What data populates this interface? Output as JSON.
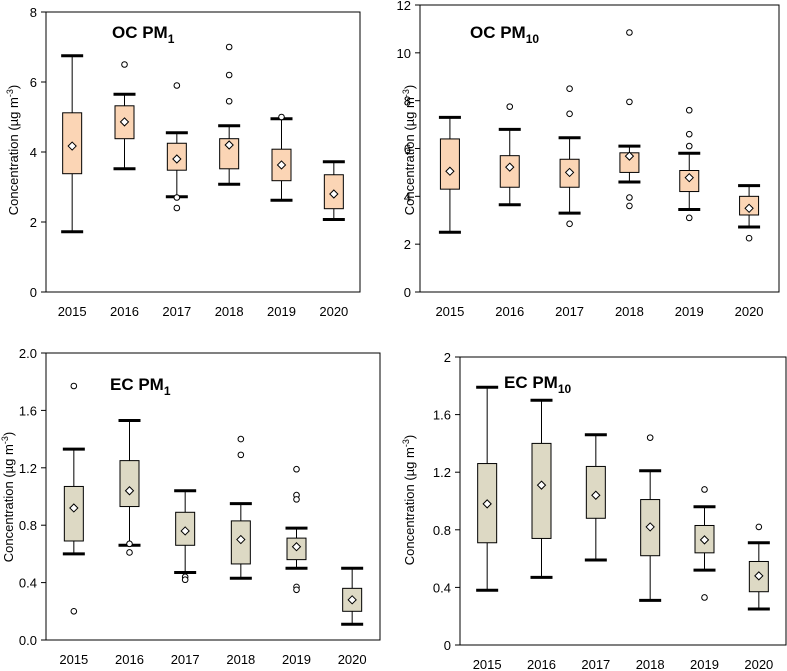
{
  "chart_data": [
    {
      "type": "box",
      "id": "oc-pm1",
      "title": "OC PM",
      "title_sub": "1",
      "ylabel": "Concentration (µg m",
      "ylabel_sup": "-3",
      "ylabel_end": ")",
      "ylim": [
        0,
        8
      ],
      "yticks": [
        "0",
        "2",
        "4",
        "6",
        "8"
      ],
      "ytick_values": [
        0,
        2,
        4,
        6,
        8
      ],
      "categories": [
        "2015",
        "2016",
        "2017",
        "2018",
        "2019",
        "2020"
      ],
      "box_color": "#fbd5b5",
      "boxes": [
        {
          "whislo": 1.72,
          "q1": 3.38,
          "q3": 5.12,
          "whishi": 6.75,
          "mean": 4.17,
          "fliers": []
        },
        {
          "whislo": 3.52,
          "q1": 4.38,
          "q3": 5.32,
          "whishi": 5.65,
          "mean": 4.86,
          "fliers": [
            6.5
          ]
        },
        {
          "whislo": 2.72,
          "q1": 3.48,
          "q3": 4.25,
          "whishi": 4.55,
          "mean": 3.8,
          "fliers": [
            5.9,
            2.7,
            2.4
          ]
        },
        {
          "whislo": 3.08,
          "q1": 3.52,
          "q3": 4.38,
          "whishi": 4.75,
          "mean": 4.2,
          "fliers": [
            7.0,
            6.2,
            5.45
          ]
        },
        {
          "whislo": 2.62,
          "q1": 3.18,
          "q3": 4.08,
          "whishi": 4.95,
          "mean": 3.63,
          "fliers": [
            5.0
          ]
        },
        {
          "whislo": 2.07,
          "q1": 2.38,
          "q3": 3.35,
          "whishi": 3.72,
          "mean": 2.8,
          "fliers": []
        }
      ]
    },
    {
      "type": "box",
      "id": "oc-pm10",
      "title": "OC PM",
      "title_sub": "10",
      "ylabel": "Concentration (µg m",
      "ylabel_sup": "-3",
      "ylabel_end": ")",
      "ylim": [
        0,
        12
      ],
      "yticks": [
        "0",
        "2",
        "4",
        "6",
        "8",
        "10",
        "12"
      ],
      "ytick_values": [
        0,
        2,
        4,
        6,
        8,
        10,
        12
      ],
      "categories": [
        "2015",
        "2016",
        "2017",
        "2018",
        "2019",
        "2020"
      ],
      "box_color": "#fbd5b5",
      "boxes": [
        {
          "whislo": 2.5,
          "q1": 4.3,
          "q3": 6.4,
          "whishi": 7.3,
          "mean": 5.05,
          "fliers": []
        },
        {
          "whislo": 3.65,
          "q1": 4.38,
          "q3": 5.7,
          "whishi": 6.8,
          "mean": 5.22,
          "fliers": [
            7.75
          ]
        },
        {
          "whislo": 3.3,
          "q1": 4.38,
          "q3": 5.55,
          "whishi": 6.45,
          "mean": 5.0,
          "fliers": [
            8.5,
            7.45,
            2.85
          ]
        },
        {
          "whislo": 4.6,
          "q1": 5.0,
          "q3": 5.82,
          "whishi": 6.1,
          "mean": 5.68,
          "fliers": [
            10.85,
            7.95,
            3.95,
            3.6
          ]
        },
        {
          "whislo": 3.45,
          "q1": 4.2,
          "q3": 5.08,
          "whishi": 5.8,
          "mean": 4.78,
          "fliers": [
            7.6,
            6.6,
            6.1,
            3.1
          ]
        },
        {
          "whislo": 2.72,
          "q1": 3.22,
          "q3": 4.0,
          "whishi": 4.45,
          "mean": 3.5,
          "fliers": [
            2.25
          ]
        }
      ]
    },
    {
      "type": "box",
      "id": "ec-pm1",
      "title": "EC PM",
      "title_sub": "1",
      "ylabel": "Concentration (µg m",
      "ylabel_sup": "-3",
      "ylabel_end": ")",
      "ylim": [
        0,
        2
      ],
      "yticks": [
        "0.0",
        "0.4",
        "0.8",
        "1.2",
        "1.6",
        "2.0"
      ],
      "ytick_values": [
        0,
        0.4,
        0.8,
        1.2,
        1.6,
        2.0
      ],
      "categories": [
        "2015",
        "2016",
        "2017",
        "2018",
        "2019",
        "2020"
      ],
      "box_color": "#ddd9c4",
      "boxes": [
        {
          "whislo": 0.6,
          "q1": 0.69,
          "q3": 1.07,
          "whishi": 1.33,
          "mean": 0.92,
          "fliers": [
            1.77,
            0.2
          ]
        },
        {
          "whislo": 0.66,
          "q1": 0.93,
          "q3": 1.25,
          "whishi": 1.53,
          "mean": 1.04,
          "fliers": [
            0.67,
            0.61
          ]
        },
        {
          "whislo": 0.47,
          "q1": 0.66,
          "q3": 0.89,
          "whishi": 1.04,
          "mean": 0.76,
          "fliers": [
            0.44,
            0.42
          ]
        },
        {
          "whislo": 0.43,
          "q1": 0.53,
          "q3": 0.83,
          "whishi": 0.95,
          "mean": 0.7,
          "fliers": [
            1.4,
            1.29
          ]
        },
        {
          "whislo": 0.5,
          "q1": 0.56,
          "q3": 0.71,
          "whishi": 0.78,
          "mean": 0.65,
          "fliers": [
            1.19,
            1.01,
            0.98,
            0.37,
            0.35
          ]
        },
        {
          "whislo": 0.11,
          "q1": 0.2,
          "q3": 0.36,
          "whishi": 0.5,
          "mean": 0.28,
          "fliers": []
        }
      ]
    },
    {
      "type": "box",
      "id": "ec-pm10",
      "title": "EC PM",
      "title_sub": "10",
      "ylabel": "Concentration (µg m",
      "ylabel_sup": "-3",
      "ylabel_end": ")",
      "ylim": [
        0,
        2
      ],
      "yticks": [
        "0",
        "0.4",
        "0.8",
        "1.2",
        "1.6",
        "2"
      ],
      "ytick_values": [
        0,
        0.4,
        0.8,
        1.2,
        1.6,
        2.0
      ],
      "categories": [
        "2015",
        "2016",
        "2017",
        "2018",
        "2019",
        "2020"
      ],
      "box_color": "#ddd9c4",
      "boxes": [
        {
          "whislo": 0.38,
          "q1": 0.71,
          "q3": 1.26,
          "whishi": 1.79,
          "mean": 0.98,
          "fliers": []
        },
        {
          "whislo": 0.47,
          "q1": 0.74,
          "q3": 1.4,
          "whishi": 1.7,
          "mean": 1.11,
          "fliers": []
        },
        {
          "whislo": 0.59,
          "q1": 0.88,
          "q3": 1.24,
          "whishi": 1.46,
          "mean": 1.04,
          "fliers": []
        },
        {
          "whislo": 0.31,
          "q1": 0.62,
          "q3": 1.01,
          "whishi": 1.21,
          "mean": 0.82,
          "fliers": [
            1.44
          ]
        },
        {
          "whislo": 0.52,
          "q1": 0.64,
          "q3": 0.83,
          "whishi": 0.96,
          "mean": 0.73,
          "fliers": [
            1.08,
            0.33
          ]
        },
        {
          "whislo": 0.25,
          "q1": 0.37,
          "q3": 0.58,
          "whishi": 0.71,
          "mean": 0.48,
          "fliers": [
            0.82
          ]
        }
      ]
    }
  ]
}
